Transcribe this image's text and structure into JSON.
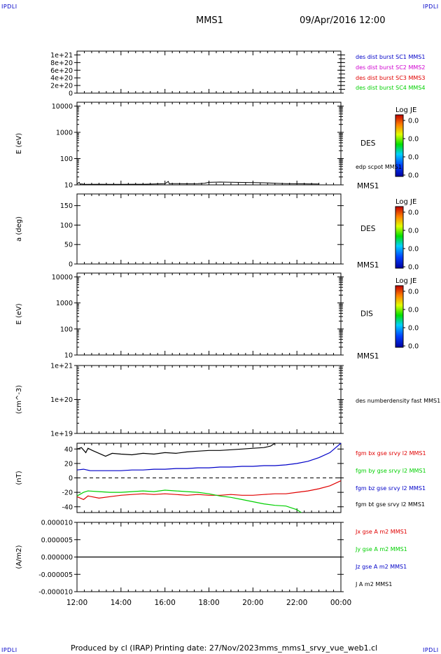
{
  "corner_label": "IPDLI",
  "header": {
    "spacecraft": "MMS1",
    "datetime": "09/Apr/2016 12:00"
  },
  "footer": {
    "produced_by": "Produced by cl (IRAP)",
    "printing_date": "Printing date: 27/Nov/2023",
    "file": "mms_mms1_srvy_vue_web1.cl"
  },
  "colors": {
    "blue": "#0000c8",
    "magenta": "#d000d0",
    "red": "#e00000",
    "green": "#00d000",
    "black": "#000000"
  },
  "chart_data": [
    {
      "id": "panel1",
      "type": "line",
      "yticks": [
        "1e+21",
        "8e+20",
        "6e+20",
        "4e+20",
        "2e+20",
        "0"
      ],
      "ytick_values": [
        1e+21,
        8e+20,
        6e+20,
        4e+20,
        2e+20,
        0
      ],
      "ylim": [
        0,
        1.1e+21
      ],
      "legend": [
        {
          "text": "des dist burst SC1 MMS1",
          "color": "#0000c8"
        },
        {
          "text": "des dist burst SC2 MMS2",
          "color": "#d000d0"
        },
        {
          "text": "des dist burst SC3 MMS3",
          "color": "#e00000"
        },
        {
          "text": "des dist burst SC4 MMS4",
          "color": "#00d000"
        }
      ],
      "reference_line": 0
    },
    {
      "id": "panel2",
      "type": "heatmap",
      "ylabel": "E (eV)",
      "yscale": "log",
      "yticks": [
        "10000",
        "1000",
        "100",
        "10"
      ],
      "ytick_values": [
        10000,
        1000,
        100,
        10
      ],
      "ylim": [
        10,
        14000
      ],
      "instrument": "DES",
      "right_label": "MMS1",
      "overlay_label": "edp scpot MMS1",
      "colorbar": {
        "title": "Log JE",
        "ticks": [
          "0.0",
          "0.0",
          "0.0",
          "0.0"
        ]
      },
      "overlay_series": {
        "name": "edp scpot MMS1",
        "x": [
          12.0,
          12.1,
          12.15,
          12.2,
          12.3,
          12.5,
          13.0,
          13.5,
          14.0,
          14.5,
          15.0,
          15.5,
          16.0,
          16.15,
          16.2,
          16.3,
          17.0,
          17.5,
          17.8,
          17.9,
          18.0,
          18.5,
          19.0,
          19.5,
          20.0,
          20.5,
          21.0,
          21.5,
          22.0,
          22.5,
          23.0
        ],
        "y": [
          10.8,
          12.5,
          10.5,
          10.9,
          10.6,
          10.5,
          10.6,
          10.5,
          10.5,
          10.6,
          10.6,
          10.8,
          11.0,
          13.5,
          10.9,
          11.2,
          11.0,
          11.2,
          11.5,
          12.0,
          12.5,
          12.8,
          12.6,
          12.4,
          12.2,
          12.0,
          11.5,
          11.2,
          11.0,
          10.9,
          10.8
        ]
      }
    },
    {
      "id": "panel3",
      "type": "heatmap",
      "ylabel": "a (deg)",
      "yticks": [
        "150",
        "100",
        "50",
        "0"
      ],
      "ytick_values": [
        150,
        100,
        50,
        0
      ],
      "ylim": [
        0,
        180
      ],
      "instrument": "DES",
      "right_label": "MMS1",
      "colorbar": {
        "title": "Log JE",
        "ticks": [
          "0.0",
          "0.0",
          "0.0",
          "0.0"
        ]
      }
    },
    {
      "id": "panel4",
      "type": "heatmap",
      "ylabel": "E (eV)",
      "yscale": "log",
      "yticks": [
        "10000",
        "1000",
        "100",
        "10"
      ],
      "ytick_values": [
        10000,
        1000,
        100,
        10
      ],
      "ylim": [
        10,
        14000
      ],
      "instrument": "DIS",
      "right_label": "MMS1",
      "colorbar": {
        "title": "Log JE",
        "ticks": [
          "0.0",
          "0.0",
          "0.0",
          "0.0"
        ]
      }
    },
    {
      "id": "panel5",
      "type": "line",
      "ylabel": "(cm^-3)",
      "yscale": "log",
      "yticks": [
        "1e+21",
        "1e+20",
        "1e+19"
      ],
      "ytick_values": [
        1e+21,
        1e+20,
        1e+19
      ],
      "ylim": [
        1e+19,
        1e+21
      ],
      "legend": [
        {
          "text": "des numberdensity fast MMS1",
          "color": "#000000"
        }
      ]
    },
    {
      "id": "panel6",
      "type": "line",
      "ylabel": "(nT)",
      "yticks": [
        "40",
        "20",
        "0",
        "-20",
        "-40"
      ],
      "ytick_values": [
        40,
        20,
        0,
        -20,
        -40
      ],
      "ylim": [
        -48,
        48
      ],
      "reference_line": 0,
      "legend": [
        {
          "text": "fgm bx gse srvy l2 MMS1",
          "color": "#e00000"
        },
        {
          "text": "fgm by gse srvy l2 MMS1",
          "color": "#00d000"
        },
        {
          "text": "fgm bz gse srvy l2 MMS1",
          "color": "#0000c8"
        },
        {
          "text": "fgm bt gse srvy l2 MMS1",
          "color": "#000000"
        }
      ],
      "series": [
        {
          "name": "fgm bt gse srvy l2 MMS1",
          "color": "#000000",
          "x": [
            12.0,
            12.2,
            12.4,
            12.5,
            12.7,
            13.0,
            13.3,
            13.6,
            14.0,
            14.5,
            15.0,
            15.5,
            16.0,
            16.5,
            17.0,
            17.5,
            18.0,
            18.5,
            19.0,
            19.5,
            20.0,
            20.5,
            20.8,
            21.0
          ],
          "y": [
            40,
            42,
            35,
            41,
            38,
            34,
            30,
            34,
            33,
            32,
            34,
            33,
            35,
            34,
            36,
            37,
            38,
            38,
            39,
            40,
            41,
            42,
            44,
            48
          ]
        },
        {
          "name": "fgm bz gse srvy l2 MMS1",
          "color": "#0000c8",
          "x": [
            12.0,
            12.3,
            12.6,
            13.0,
            13.5,
            14.0,
            14.5,
            15.0,
            15.5,
            16.0,
            16.5,
            17.0,
            17.5,
            18.0,
            18.5,
            19.0,
            19.5,
            20.0,
            20.5,
            21.0,
            21.5,
            22.0,
            22.5,
            23.0,
            23.5,
            24.0
          ],
          "y": [
            11,
            12,
            10,
            10,
            10,
            10,
            11,
            11,
            12,
            12,
            13,
            13,
            14,
            14,
            15,
            15,
            16,
            16,
            17,
            17,
            18,
            20,
            23,
            28,
            35,
            48
          ]
        },
        {
          "name": "fgm bx gse srvy l2 MMS1",
          "color": "#e00000",
          "x": [
            12.0,
            12.3,
            12.5,
            13.0,
            13.5,
            14.0,
            14.5,
            15.0,
            15.5,
            16.0,
            16.5,
            17.0,
            17.5,
            18.0,
            18.5,
            19.0,
            19.5,
            20.0,
            20.5,
            21.0,
            21.5,
            22.0,
            22.5,
            23.0,
            23.5,
            24.0
          ],
          "y": [
            -26,
            -30,
            -25,
            -28,
            -26,
            -24,
            -23,
            -22,
            -23,
            -22,
            -23,
            -24,
            -23,
            -24,
            -24,
            -23,
            -24,
            -24,
            -23,
            -22,
            -22,
            -20,
            -18,
            -15,
            -11,
            -4
          ]
        },
        {
          "name": "fgm by gse srvy l2 MMS1",
          "color": "#00d000",
          "x": [
            12.0,
            12.3,
            12.5,
            13.0,
            13.5,
            14.0,
            14.5,
            15.0,
            15.5,
            16.0,
            16.5,
            17.0,
            17.5,
            18.0,
            18.5,
            19.0,
            19.5,
            20.0,
            20.5,
            21.0,
            21.5,
            22.0,
            22.2
          ],
          "y": [
            -25,
            -20,
            -18,
            -19,
            -20,
            -20,
            -19,
            -18,
            -19,
            -17,
            -18,
            -19,
            -20,
            -22,
            -25,
            -27,
            -30,
            -33,
            -36,
            -38,
            -39,
            -44,
            -48
          ]
        }
      ]
    },
    {
      "id": "panel7",
      "type": "line",
      "ylabel": "(A/m2)",
      "yticks": [
        "0.000010",
        "0.000005",
        "0.000000",
        "-0.000005",
        "-0.000010"
      ],
      "ytick_values": [
        1e-05,
        5e-06,
        0,
        -5e-06,
        -1e-05
      ],
      "ylim": [
        -1e-05,
        1e-05
      ],
      "legend": [
        {
          "text": "Jx gse A m2 MMS1",
          "color": "#e00000"
        },
        {
          "text": "Jy gse A m2 MMS1",
          "color": "#00d000"
        },
        {
          "text": "Jz gse A m2 MMS1",
          "color": "#0000c8"
        },
        {
          "text": "J A m2 MMS1",
          "color": "#000000"
        }
      ],
      "series": [
        {
          "name": "J A m2 MMS1",
          "color": "#000000",
          "x": [
            12,
            24
          ],
          "y": [
            0,
            0
          ]
        }
      ]
    }
  ],
  "xaxis": {
    "ticks": [
      "12:00",
      "14:00",
      "16:00",
      "18:00",
      "20:00",
      "22:00",
      "00:00"
    ],
    "tick_hours": [
      12,
      14,
      16,
      18,
      20,
      22,
      24
    ],
    "range_hours": [
      12,
      24
    ]
  }
}
